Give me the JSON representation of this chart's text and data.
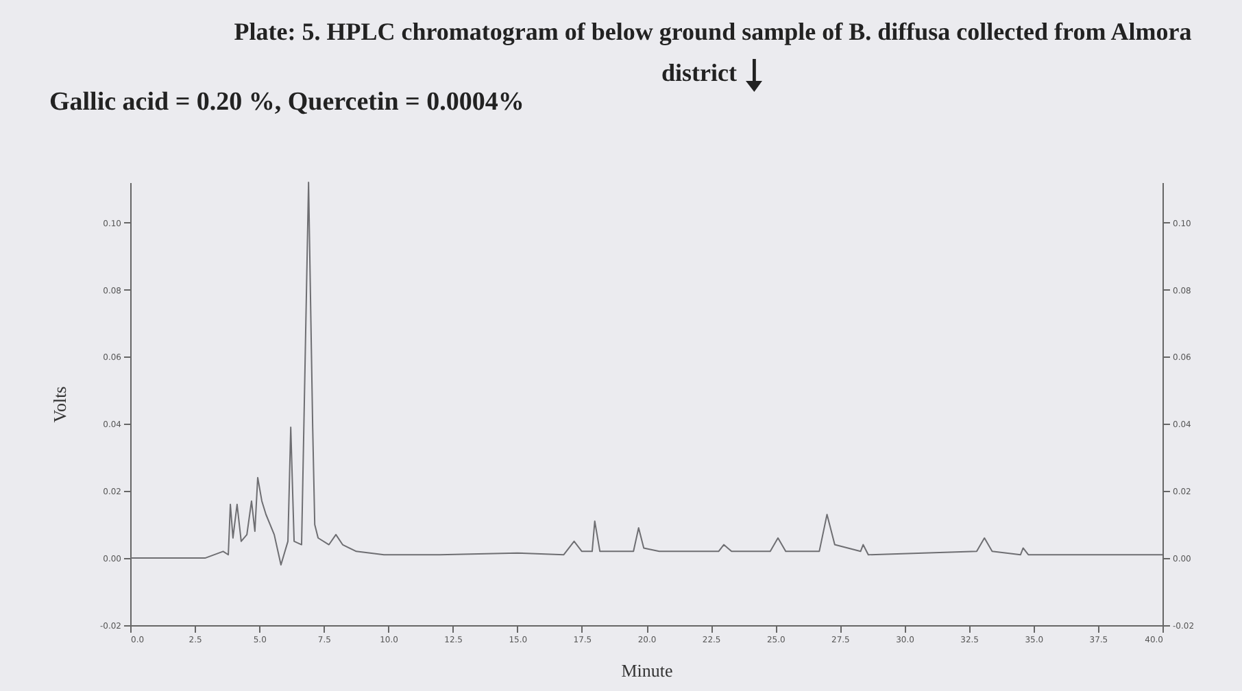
{
  "chart_data": {
    "type": "line",
    "title": "Plate: 5. HPLC chromatogram of below ground sample of B. diffusa collected from Almora district",
    "subtitle": "Gallic acid = 0.20 %, Quercetin = 0.0004%",
    "xlabel": "Minute",
    "ylabel": "Volts",
    "x": [
      0,
      2.9,
      3.6,
      3.8,
      3.88,
      3.98,
      4.14,
      4.3,
      4.52,
      4.7,
      4.83,
      4.94,
      5.1,
      5.26,
      5.58,
      5.84,
      6.11,
      6.22,
      6.35,
      6.64,
      6.91,
      7.07,
      7.15,
      7.28,
      7.7,
      7.97,
      8.23,
      8.76,
      9.83,
      12,
      15,
      16.8,
      17.2,
      17.5,
      17.9,
      18.0,
      18.2,
      19.5,
      19.7,
      19.9,
      20.5,
      22.8,
      23,
      23.3,
      24.8,
      25.1,
      25.4,
      26.7,
      27.0,
      27.3,
      28.3,
      28.4,
      28.6,
      32.8,
      33.1,
      33.4,
      34.5,
      34.6,
      34.8,
      40
    ],
    "series": [
      {
        "color": "#6e6e72",
        "values": [
          0,
          0,
          0.002,
          0.001,
          0.016,
          0.006,
          0.016,
          0.005,
          0.007,
          0.017,
          0.008,
          0.024,
          0.017,
          0.013,
          0.007,
          -0.002,
          0.005,
          0.039,
          0.005,
          0.004,
          0.112,
          0.039,
          0.01,
          0.006,
          0.004,
          0.007,
          0.004,
          0.002,
          0.001,
          0.001,
          0.0015,
          0.001,
          0.005,
          0.002,
          0.002,
          0.011,
          0.002,
          0.002,
          0.009,
          0.003,
          0.002,
          0.002,
          0.004,
          0.002,
          0.002,
          0.006,
          0.002,
          0.002,
          0.013,
          0.004,
          0.002,
          0.004,
          0.001,
          0.002,
          0.006,
          0.002,
          0.001,
          0.003,
          0.001,
          0.001
        ]
      }
    ],
    "xlim": [
      0,
      40
    ],
    "xticks": [
      {
        "value": 0,
        "label": "0.0"
      },
      {
        "value": 2.5,
        "label": "2.5"
      },
      {
        "value": 5,
        "label": "5.0"
      },
      {
        "value": 7.5,
        "label": "7.5"
      },
      {
        "value": 10,
        "label": "10.0"
      },
      {
        "value": 12.5,
        "label": "12.5"
      },
      {
        "value": 15,
        "label": "15.0"
      },
      {
        "value": 17.5,
        "label": "17.5"
      },
      {
        "value": 20,
        "label": "20.0"
      },
      {
        "value": 22.5,
        "label": "22.5"
      },
      {
        "value": 25,
        "label": "25.0"
      },
      {
        "value": 27.5,
        "label": "27.5"
      },
      {
        "value": 30,
        "label": "30.0"
      },
      {
        "value": 32.5,
        "label": "32.5"
      },
      {
        "value": 35,
        "label": "35.0"
      },
      {
        "value": 37.5,
        "label": "37.5"
      },
      {
        "value": 40,
        "label": "40.0"
      }
    ],
    "ylim": [
      -0.02,
      0.112
    ],
    "yticks": [
      {
        "value": -0.02,
        "label": "-0.02"
      },
      {
        "value": 0,
        "label": "0.00"
      },
      {
        "value": 0.02,
        "label": "0.02"
      },
      {
        "value": 0.04,
        "label": "0.04"
      },
      {
        "value": 0.06,
        "label": "0.06"
      },
      {
        "value": 0.08,
        "label": "0.08"
      },
      {
        "value": 0.1,
        "label": "0.10"
      }
    ],
    "y2lim": [
      -0.02,
      0.112
    ],
    "y2ticks": [
      {
        "value": -0.02,
        "label": "-0.02"
      },
      {
        "value": 0,
        "label": "0.00"
      },
      {
        "value": 0.02,
        "label": "0.02"
      },
      {
        "value": 0.04,
        "label": "0.04"
      },
      {
        "value": 0.06,
        "label": "0.06"
      },
      {
        "value": 0.08,
        "label": "0.08"
      },
      {
        "value": 0.1,
        "label": "0.10"
      }
    ],
    "grid": false,
    "marker": "none",
    "line_style": "solid"
  }
}
